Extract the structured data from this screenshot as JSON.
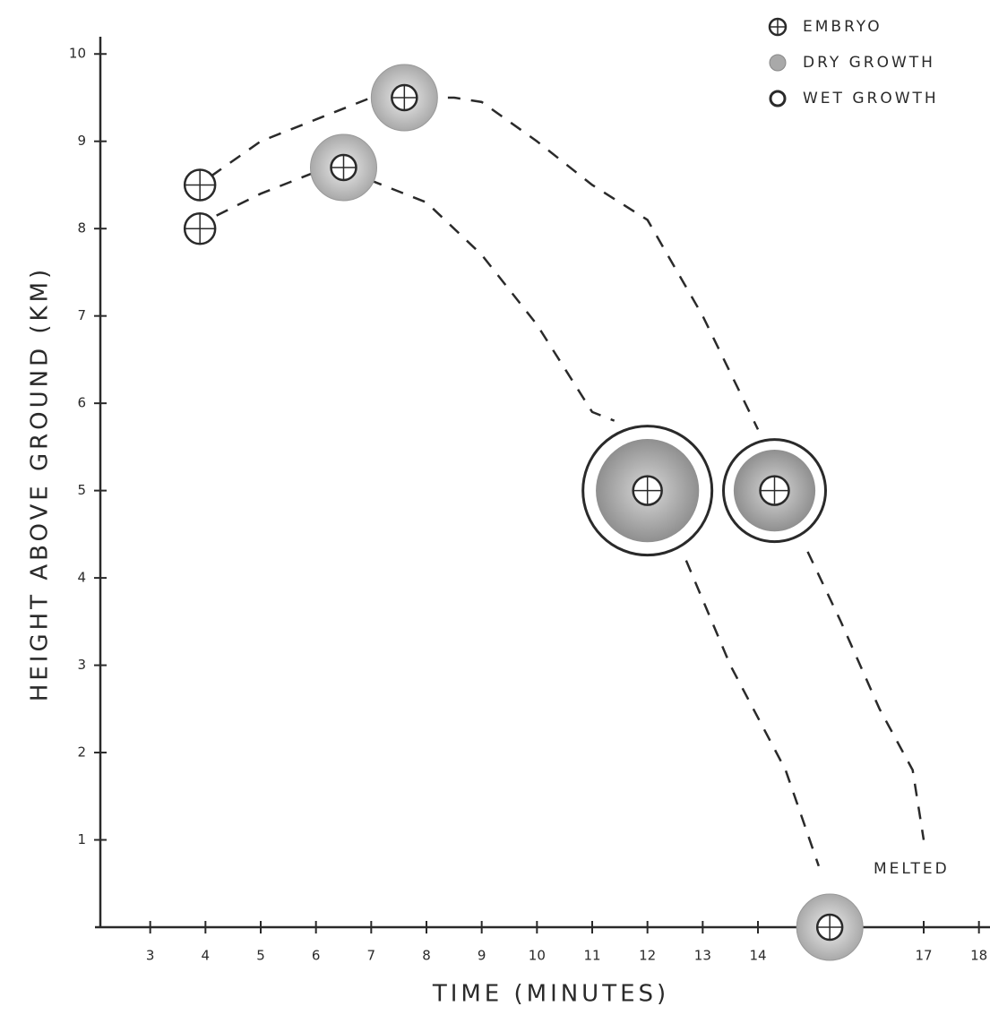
{
  "chart_data": {
    "type": "trajectory",
    "x_label": "TIME (MINUTES)",
    "y_label": "HEIGHT ABOVE GROUND (KM)",
    "annotation": "MELTED",
    "xlim": [
      2,
      18.2
    ],
    "ylim": [
      0,
      10.3
    ],
    "xticks": [
      3,
      4,
      5,
      6,
      7,
      8,
      9,
      10,
      11,
      12,
      13,
      14,
      17,
      18
    ],
    "yticks": [
      1,
      2,
      3,
      4,
      5,
      6,
      7,
      8,
      9,
      10
    ],
    "color": "#2a2a2a",
    "series": [
      {
        "name": "EMBRYO",
        "color": "#ffffff",
        "x": [
          3.9,
          3.9
        ],
        "y": [
          8.5,
          8.0
        ]
      },
      {
        "name": "DRY GROWTH",
        "color": "#a9a9a9",
        "x": [
          6.5,
          7.6,
          15.3
        ],
        "y": [
          8.7,
          9.5,
          0
        ]
      },
      {
        "name": "WET GROWTH",
        "color": "#8f8f8f",
        "x": [
          12.0,
          14.3
        ],
        "y": [
          5.0,
          5.0
        ]
      }
    ],
    "paths": [
      {
        "x": [
          4.1,
          5,
          6,
          7,
          8.5,
          9,
          10,
          11,
          12,
          13,
          14,
          null,
          14.9,
          15.5,
          16.2,
          16.8,
          17
        ],
        "y": [
          8.6,
          9.0,
          9.25,
          9.5,
          9.5,
          9.45,
          9.0,
          8.5,
          8.1,
          7.0,
          5.7,
          null,
          4.3,
          3.5,
          2.5,
          1.8,
          1.0
        ]
      },
      {
        "x": [
          4.2,
          5,
          6,
          7,
          8,
          9,
          10,
          11,
          11.4,
          null,
          12.7,
          13.5,
          14.5,
          15.1
        ],
        "y": [
          8.15,
          8.4,
          8.65,
          8.55,
          8.3,
          7.7,
          6.9,
          5.9,
          5.8,
          null,
          4.2,
          3.0,
          1.8,
          0.7
        ]
      }
    ]
  }
}
